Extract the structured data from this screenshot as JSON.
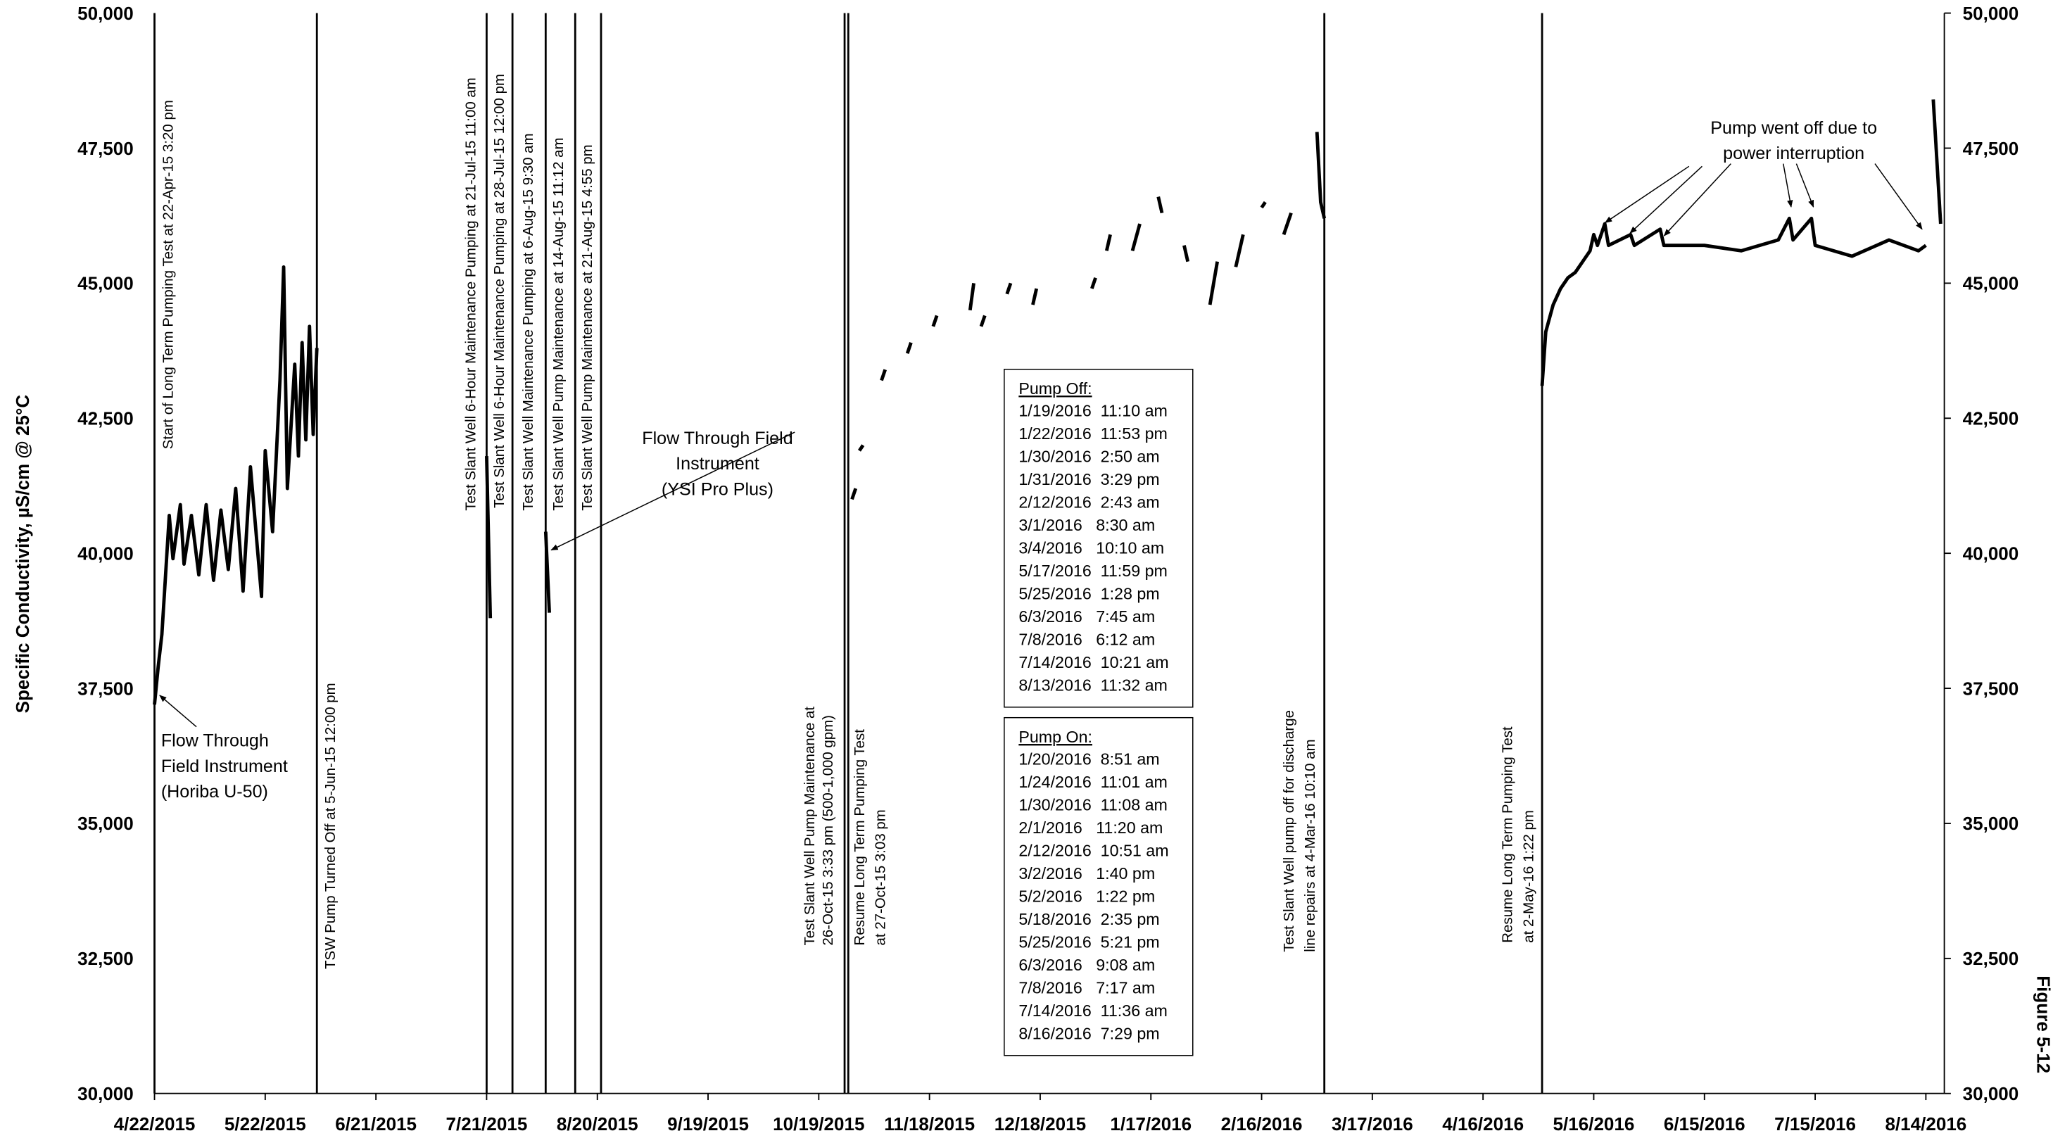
{
  "chart_data": {
    "type": "line",
    "y_label": "Specific Conductivity, µS/cm @ 25°C",
    "side_label": "Figure 5-12",
    "color": "#000000",
    "grid": true,
    "xlim": [
      "2015-04-22",
      "2016-08-19"
    ],
    "xticks": [
      {
        "value": "2015-04-22",
        "label": "4/22/2015"
      },
      {
        "value": "2015-05-22",
        "label": "5/22/2015"
      },
      {
        "value": "2015-06-21",
        "label": "6/21/2015"
      },
      {
        "value": "2015-07-21",
        "label": "7/21/2015"
      },
      {
        "value": "2015-08-20",
        "label": "8/20/2015"
      },
      {
        "value": "2015-09-19",
        "label": "9/19/2015"
      },
      {
        "value": "2015-10-19",
        "label": "10/19/2015"
      },
      {
        "value": "2015-11-18",
        "label": "11/18/2015"
      },
      {
        "value": "2015-12-18",
        "label": "12/18/2015"
      },
      {
        "value": "2016-01-17",
        "label": "1/17/2016"
      },
      {
        "value": "2016-02-16",
        "label": "2/16/2016"
      },
      {
        "value": "2016-03-17",
        "label": "3/17/2016"
      },
      {
        "value": "2016-04-16",
        "label": "4/16/2016"
      },
      {
        "value": "2016-05-16",
        "label": "5/16/2016"
      },
      {
        "value": "2016-06-15",
        "label": "6/15/2016"
      },
      {
        "value": "2016-07-15",
        "label": "7/15/2016"
      },
      {
        "value": "2016-08-14",
        "label": "8/14/2016"
      }
    ],
    "ylim": [
      30000,
      50000
    ],
    "yticks": [
      {
        "value": 30000,
        "label": "30,000"
      },
      {
        "value": 32500,
        "label": "32,500"
      },
      {
        "value": 35000,
        "label": "35,000"
      },
      {
        "value": 37500,
        "label": "37,500"
      },
      {
        "value": 40000,
        "label": "40,000"
      },
      {
        "value": 42500,
        "label": "42,500"
      },
      {
        "value": 45000,
        "label": "45,000"
      },
      {
        "value": 47500,
        "label": "47,500"
      },
      {
        "value": 50000,
        "label": "50,000"
      }
    ],
    "y2lim": [
      30000,
      50000
    ],
    "y2ticks": [
      {
        "value": 30000,
        "label": "30,000"
      },
      {
        "value": 32500,
        "label": "32,500"
      },
      {
        "value": 35000,
        "label": "35,000"
      },
      {
        "value": 37500,
        "label": "37,500"
      },
      {
        "value": 40000,
        "label": "40,000"
      },
      {
        "value": 42500,
        "label": "42,500"
      },
      {
        "value": 45000,
        "label": "45,000"
      },
      {
        "value": 47500,
        "label": "47,500"
      },
      {
        "value": 50000,
        "label": "50,000"
      }
    ],
    "x": [
      "2015-04-22",
      "2015-04-23",
      "2015-04-24",
      "2015-04-25",
      "2015-04-26",
      "2015-04-27",
      "2015-04-29",
      "2015-04-30",
      "2015-05-02",
      "2015-05-04",
      "2015-05-06",
      "2015-05-08",
      "2015-05-10",
      "2015-05-12",
      "2015-05-14",
      "2015-05-16",
      "2015-05-18",
      "2015-05-20",
      "2015-05-21",
      "2015-05-22",
      "2015-05-24",
      "2015-05-26",
      "2015-05-27",
      "2015-05-28",
      "2015-05-30",
      "2015-05-31",
      "2015-06-01",
      "2015-06-02",
      "2015-06-03",
      "2015-06-04",
      "2015-06-05",
      null,
      "2015-07-21",
      "2015-07-22",
      null,
      "2015-08-06",
      "2015-08-07",
      null,
      "2015-10-28",
      "2015-10-29",
      null,
      "2015-10-30",
      "2015-10-31",
      null,
      "2015-11-05",
      "2015-11-06",
      null,
      "2015-11-12",
      "2015-11-13",
      null,
      "2015-11-19",
      "2015-11-20",
      null,
      "2015-11-29",
      "2015-11-30",
      null,
      "2015-12-02",
      "2015-12-03",
      null,
      "2015-12-09",
      "2015-12-10",
      null,
      "2015-12-16",
      "2015-12-17",
      null,
      "2016-01-01",
      "2016-01-02",
      null,
      "2016-01-05",
      "2016-01-06",
      null,
      "2016-01-12",
      "2016-01-14",
      null,
      "2016-01-19",
      "2016-01-20",
      null,
      "2016-01-26",
      "2016-01-27",
      null,
      "2016-02-02",
      "2016-02-04",
      null,
      "2016-02-09",
      "2016-02-11",
      null,
      "2016-02-16",
      "2016-02-17",
      null,
      "2016-02-22",
      "2016-02-24",
      null,
      "2016-03-02",
      "2016-03-03",
      "2016-03-04",
      null,
      "2016-05-02",
      "2016-05-03",
      "2016-05-05",
      "2016-05-07",
      "2016-05-09",
      "2016-05-11",
      "2016-05-13",
      "2016-05-15",
      "2016-05-16",
      "2016-05-17",
      "2016-05-19",
      "2016-05-20",
      "2016-05-26",
      "2016-05-27",
      "2016-06-03",
      "2016-06-04",
      "2016-06-15",
      "2016-06-25",
      "2016-07-05",
      "2016-07-08",
      "2016-07-09",
      "2016-07-14",
      "2016-07-15",
      "2016-07-25",
      "2016-08-04",
      "2016-08-12",
      "2016-08-14",
      null,
      "2016-08-16",
      "2016-08-18"
    ],
    "values": [
      37200,
      37900,
      38500,
      39600,
      40700,
      39900,
      40900,
      39800,
      40700,
      39600,
      40900,
      39500,
      40800,
      39700,
      41200,
      39300,
      41600,
      40000,
      39200,
      41900,
      40400,
      43200,
      45300,
      41200,
      43500,
      41800,
      43900,
      42100,
      44200,
      42200,
      43800,
      null,
      41800,
      38800,
      null,
      40400,
      38900,
      null,
      41000,
      41200,
      null,
      41900,
      42000,
      null,
      43200,
      43400,
      null,
      43700,
      43900,
      null,
      44200,
      44400,
      null,
      44500,
      45000,
      null,
      44200,
      44400,
      null,
      44800,
      45000,
      null,
      44600,
      44900,
      null,
      44900,
      45100,
      null,
      45600,
      45900,
      null,
      45600,
      46100,
      null,
      46600,
      46300,
      null,
      45700,
      45400,
      null,
      44600,
      45400,
      null,
      45300,
      45900,
      null,
      46400,
      46500,
      null,
      45900,
      46300,
      null,
      47800,
      46500,
      46200,
      null,
      43100,
      44100,
      44600,
      44900,
      45100,
      45200,
      45400,
      45600,
      45900,
      45700,
      46100,
      45700,
      45900,
      45700,
      46000,
      45700,
      45700,
      45600,
      45800,
      46200,
      45800,
      46200,
      45700,
      45500,
      45800,
      45600,
      45700,
      null,
      48400,
      46100
    ],
    "events": [
      {
        "date": "2015-04-22",
        "lines": [
          "Start of Long Term Pumping Test at 22-Apr-15 3:20 pm"
        ]
      },
      {
        "date": "2015-06-05",
        "lines": [
          "TSW Pump Turned Off at 5-Jun-15 12:00 pm"
        ]
      },
      {
        "date": "2015-07-21",
        "lines": [
          "Test Slant Well 6-Hour Maintenance Pumping at 21-Jul-15 11:00 am"
        ]
      },
      {
        "date": "2015-07-28",
        "lines": [
          "Test Slant Well 6-Hour Maintenance Pumping at 28-Jul-15 12:00 pm"
        ]
      },
      {
        "date": "2015-08-06",
        "lines": [
          "Test Slant Well Maintenance Pumping at 6-Aug-15 9:30 am"
        ]
      },
      {
        "date": "2015-08-14",
        "lines": [
          "Test Slant Well Pump Maintenance at 14-Aug-15 11:12 am"
        ]
      },
      {
        "date": "2015-08-21",
        "lines": [
          "Test Slant Well Pump Maintenance at 21-Aug-15 4:55 pm"
        ]
      },
      {
        "date": "2015-10-26",
        "lines": [
          "Test Slant Well Pump Maintenance at",
          "26-Oct-15 3:33 pm (500-1,000 gpm)"
        ]
      },
      {
        "date": "2015-10-27",
        "lines": [
          "Resume Long Term Pumping Test",
          "at 27-Oct-15 3:03 pm"
        ]
      },
      {
        "date": "2016-03-04",
        "lines": [
          "Test Slant Well pump off for discharge",
          "line repairs at 4-Mar-16 10:10 am"
        ]
      },
      {
        "date": "2016-05-02",
        "lines": [
          "Resume Long Term Pumping Test",
          "at 2-May-16 1:22 pm"
        ]
      }
    ],
    "annotations": [
      {
        "lines": [
          "Flow Through",
          "Field Instrument",
          "(Horiba U-50)"
        ]
      },
      {
        "lines": [
          "Flow Through Field",
          "Instrument",
          "(YSI Pro Plus)"
        ]
      },
      {
        "lines": [
          "Pump went off due to",
          "power interruption"
        ]
      }
    ],
    "pump_off": {
      "title": "Pump Off:",
      "rows": [
        "1/19/2016  11:10 am",
        "1/22/2016  11:53 pm",
        "1/30/2016  2:50 am",
        "1/31/2016  3:29 pm",
        "2/12/2016  2:43 am",
        "3/1/2016   8:30 am",
        "3/4/2016   10:10 am",
        "5/17/2016  11:59 pm",
        "5/25/2016  1:28 pm",
        "6/3/2016   7:45 am",
        "7/8/2016   6:12 am",
        "7/14/2016  10:21 am",
        "8/13/2016  11:32 am"
      ]
    },
    "pump_on": {
      "title": "Pump On:",
      "rows": [
        "1/20/2016  8:51 am",
        "1/24/2016  11:01 am",
        "1/30/2016  11:08 am",
        "2/1/2016   11:20 am",
        "2/12/2016  10:51 am",
        "3/2/2016   1:40 pm",
        "5/2/2016   1:22 pm",
        "5/18/2016  2:35 pm",
        "5/25/2016  5:21 pm",
        "6/3/2016   9:08 am",
        "7/8/2016   7:17 am",
        "7/14/2016  11:36 am",
        "8/16/2016  7:29 pm"
      ]
    }
  }
}
